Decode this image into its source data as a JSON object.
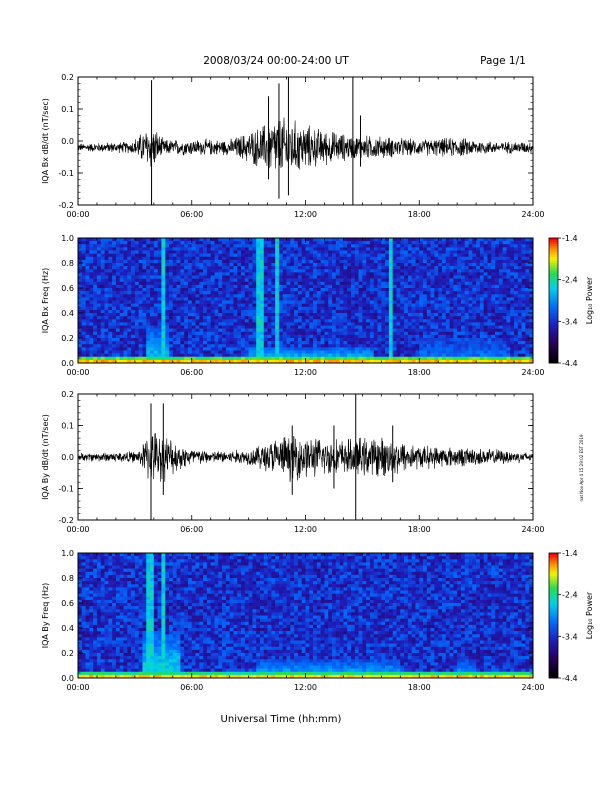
{
  "header": {
    "title": "2008/03/24  00:00-24:00 UT",
    "page": "Page 1/1"
  },
  "xaxis": {
    "label": "Universal Time (hh:mm)",
    "ticks": [
      "00:00",
      "06:00",
      "12:00",
      "18:00",
      "24:00"
    ]
  },
  "side_note": "nat Nov Apr 4 15:29:02 EST 2019",
  "colorbar": {
    "label": "Log₁₀ Power",
    "ticks": [
      "-1.4",
      "-2.4",
      "-3.4",
      "-4.4"
    ],
    "range": [
      -4.4,
      -1.4
    ]
  },
  "colors": {
    "trace": "#000000",
    "background": "#ffffff"
  },
  "chart_data": [
    {
      "type": "line",
      "name": "panel-bx-dbdt",
      "ylabel": "IQA Bx dB/dt (nT/sec)",
      "xlim": [
        0,
        24
      ],
      "ylim": [
        -0.2,
        0.2
      ],
      "yticks": [
        "0.2",
        "0.1",
        "0.0",
        "-0.1",
        "-0.2"
      ],
      "baseline": -0.02,
      "envelope": [
        {
          "x": 0.0,
          "amp": 0.01
        },
        {
          "x": 2.8,
          "amp": 0.015
        },
        {
          "x": 3.9,
          "amp": 0.06
        },
        {
          "x": 4.5,
          "amp": 0.02
        },
        {
          "x": 8.0,
          "amp": 0.02
        },
        {
          "x": 9.5,
          "amp": 0.05
        },
        {
          "x": 10.5,
          "amp": 0.08
        },
        {
          "x": 11.3,
          "amp": 0.07
        },
        {
          "x": 12.5,
          "amp": 0.05
        },
        {
          "x": 13.5,
          "amp": 0.04
        },
        {
          "x": 14.5,
          "amp": 0.03
        },
        {
          "x": 15.5,
          "amp": 0.03
        },
        {
          "x": 18.0,
          "amp": 0.02
        },
        {
          "x": 20.0,
          "amp": 0.025
        },
        {
          "x": 22.0,
          "amp": 0.015
        },
        {
          "x": 24.0,
          "amp": 0.015
        }
      ],
      "spikes": [
        {
          "x": 3.88,
          "max": 0.19,
          "min": -0.2
        },
        {
          "x": 10.05,
          "max": 0.14,
          "min": -0.12
        },
        {
          "x": 10.6,
          "max": 0.18,
          "min": -0.18
        },
        {
          "x": 11.1,
          "max": 0.21,
          "min": -0.17
        },
        {
          "x": 14.5,
          "max": 0.21,
          "min": -0.2
        },
        {
          "x": 14.9,
          "max": 0.08,
          "min": -0.08
        }
      ]
    },
    {
      "type": "heatmap",
      "name": "panel-bx-spectrogram",
      "ylabel": "IQA Bx Freq (Hz)",
      "xlim": [
        0,
        24
      ],
      "ylim": [
        0,
        1.0
      ],
      "yticks": [
        "1.0",
        "0.8",
        "0.6",
        "0.4",
        "0.2",
        "0.0"
      ],
      "vertical_lines": [
        4.5,
        9.6,
        10.5,
        16.5
      ],
      "enhanced_bands": [
        {
          "x0": 0.0,
          "x1": 24.0,
          "fmax": 0.06,
          "level": 0.9
        },
        {
          "x0": 3.6,
          "x1": 4.8,
          "fmax": 0.3,
          "level": 0.55
        },
        {
          "x0": 9.0,
          "x1": 15.5,
          "fmax": 0.12,
          "level": 0.6
        },
        {
          "x0": 18.0,
          "x1": 22.5,
          "fmax": 0.2,
          "level": 0.45
        }
      ]
    },
    {
      "type": "line",
      "name": "panel-by-dbdt",
      "ylabel": "IQA By dB/dt (nT/sec)",
      "xlim": [
        0,
        24
      ],
      "ylim": [
        -0.2,
        0.2
      ],
      "yticks": [
        "0.2",
        "0.1",
        "0.0",
        "-0.1",
        "-0.2"
      ],
      "baseline": 0.0,
      "envelope": [
        {
          "x": 0.0,
          "amp": 0.01
        },
        {
          "x": 3.2,
          "amp": 0.015
        },
        {
          "x": 3.8,
          "amp": 0.07
        },
        {
          "x": 4.5,
          "amp": 0.06
        },
        {
          "x": 5.5,
          "amp": 0.03
        },
        {
          "x": 7.0,
          "amp": 0.015
        },
        {
          "x": 9.0,
          "amp": 0.02
        },
        {
          "x": 10.5,
          "amp": 0.05
        },
        {
          "x": 11.5,
          "amp": 0.06
        },
        {
          "x": 12.5,
          "amp": 0.05
        },
        {
          "x": 14.0,
          "amp": 0.045
        },
        {
          "x": 15.0,
          "amp": 0.05
        },
        {
          "x": 16.5,
          "amp": 0.05
        },
        {
          "x": 18.0,
          "amp": 0.03
        },
        {
          "x": 20.0,
          "amp": 0.025
        },
        {
          "x": 22.0,
          "amp": 0.02
        },
        {
          "x": 24.0,
          "amp": 0.012
        }
      ],
      "spikes": [
        {
          "x": 3.85,
          "max": 0.17,
          "min": -0.2
        },
        {
          "x": 4.5,
          "max": 0.17,
          "min": -0.12
        },
        {
          "x": 11.3,
          "max": 0.1,
          "min": -0.12
        },
        {
          "x": 13.5,
          "max": 0.1,
          "min": -0.1
        },
        {
          "x": 14.65,
          "max": 0.21,
          "min": -0.2
        },
        {
          "x": 16.6,
          "max": 0.1,
          "min": -0.08
        }
      ]
    },
    {
      "type": "heatmap",
      "name": "panel-by-spectrogram",
      "ylabel": "IQA By Freq (Hz)",
      "xlim": [
        0,
        24
      ],
      "ylim": [
        0,
        1.0
      ],
      "yticks": [
        "1.0",
        "0.8",
        "0.6",
        "0.4",
        "0.2",
        "0.0"
      ],
      "vertical_lines": [
        3.8,
        4.5
      ],
      "enhanced_bands": [
        {
          "x0": 0.0,
          "x1": 24.0,
          "fmax": 0.05,
          "level": 0.9
        },
        {
          "x0": 3.4,
          "x1": 5.4,
          "fmax": 0.35,
          "level": 0.6
        },
        {
          "x0": 9.5,
          "x1": 17.0,
          "fmax": 0.14,
          "level": 0.55
        },
        {
          "x0": 20.0,
          "x1": 21.0,
          "fmax": 0.16,
          "level": 0.5
        }
      ]
    }
  ]
}
